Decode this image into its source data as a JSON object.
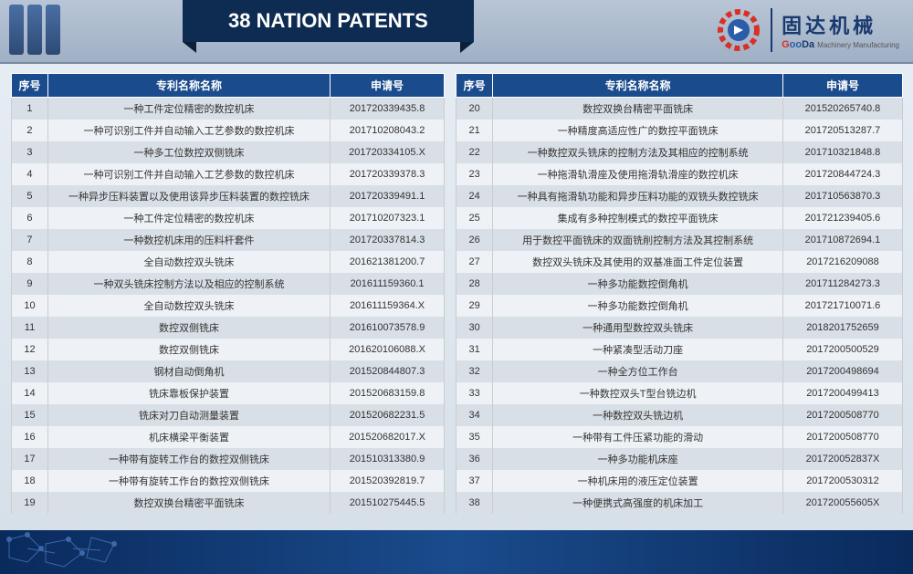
{
  "title": "38 NATION PATENTS",
  "logo": {
    "cn": "固达机械",
    "en_g": "G",
    "en_oo": "oo",
    "en_da": "Da",
    "en_sub": "Machinery Manufacturing"
  },
  "headers": {
    "num": "序号",
    "name": "专利名称名称",
    "app": "申请号"
  },
  "colors": {
    "header_bg": "#1a4b8c",
    "banner_bg": "#0e2b52",
    "row_odd": "#d9dfe6",
    "row_even": "#eef2f6"
  },
  "left_rows": [
    {
      "n": "1",
      "name": "一种工件定位精密的数控机床",
      "app": "201720339435.8"
    },
    {
      "n": "2",
      "name": "一种可识别工件并自动输入工艺参数的数控机床",
      "app": "201710208043.2"
    },
    {
      "n": "3",
      "name": "一种多工位数控双侧铣床",
      "app": "201720334105.X"
    },
    {
      "n": "4",
      "name": "一种可识别工件并自动输入工艺参数的数控机床",
      "app": "201720339378.3"
    },
    {
      "n": "5",
      "name": "一种异步压料装置以及使用该异步压料装置的数控铣床",
      "app": "201720339491.1"
    },
    {
      "n": "6",
      "name": "一种工件定位精密的数控机床",
      "app": "201710207323.1"
    },
    {
      "n": "7",
      "name": "一种数控机床用的压料杆套件",
      "app": "201720337814.3"
    },
    {
      "n": "8",
      "name": "全自动数控双头铣床",
      "app": "201621381200.7"
    },
    {
      "n": "9",
      "name": "一种双头铣床控制方法以及相应的控制系统",
      "app": "201611159360.1"
    },
    {
      "n": "10",
      "name": "全自动数控双头铣床",
      "app": "201611159364.X"
    },
    {
      "n": "11",
      "name": "数控双侧铣床",
      "app": "201610073578.9"
    },
    {
      "n": "12",
      "name": "数控双侧铣床",
      "app": "201620106088.X"
    },
    {
      "n": "13",
      "name": "钢材自动倒角机",
      "app": "201520844807.3"
    },
    {
      "n": "14",
      "name": "铣床靠板保护装置",
      "app": "201520683159.8"
    },
    {
      "n": "15",
      "name": "铣床对刀自动测量装置",
      "app": "201520682231.5"
    },
    {
      "n": "16",
      "name": "机床横梁平衡装置",
      "app": "201520682017.X"
    },
    {
      "n": "17",
      "name": "一种带有旋转工作台的数控双侧铣床",
      "app": "201510313380.9"
    },
    {
      "n": "18",
      "name": "一种带有旋转工作台的数控双侧铣床",
      "app": "201520392819.7"
    },
    {
      "n": "19",
      "name": "数控双换台精密平面铣床",
      "app": "201510275445.5"
    }
  ],
  "right_rows": [
    {
      "n": "20",
      "name": "数控双换台精密平面铣床",
      "app": "201520265740.8"
    },
    {
      "n": "21",
      "name": "一种精度高适应性广的数控平面铣床",
      "app": "201720513287.7"
    },
    {
      "n": "22",
      "name": "一种数控双头铣床的控制方法及其相应的控制系统",
      "app": "201710321848.8"
    },
    {
      "n": "23",
      "name": "一种拖滑轨滑座及使用拖滑轨滑座的数控机床",
      "app": "201720844724.3"
    },
    {
      "n": "24",
      "name": "一种具有拖滑轨功能和异步压料功能的双铣头数控铣床",
      "app": "201710563870.3"
    },
    {
      "n": "25",
      "name": "集成有多种控制模式的数控平面铣床",
      "app": "201721239405.6"
    },
    {
      "n": "26",
      "name": "用于数控平面铣床的双面铣削控制方法及其控制系统",
      "app": "201710872694.1"
    },
    {
      "n": "27",
      "name": "数控双头铣床及其使用的双基准面工件定位装置",
      "app": "2017216209088"
    },
    {
      "n": "28",
      "name": "一种多功能数控倒角机",
      "app": "201711284273.3"
    },
    {
      "n": "29",
      "name": "一种多功能数控倒角机",
      "app": "201721710071.6"
    },
    {
      "n": "30",
      "name": "一种通用型数控双头铣床",
      "app": "2018201752659"
    },
    {
      "n": "31",
      "name": "一种紧凑型活动刀座",
      "app": "2017200500529"
    },
    {
      "n": "32",
      "name": "一种全方位工作台",
      "app": "2017200498694"
    },
    {
      "n": "33",
      "name": "一种数控双头T型台铣边机",
      "app": "2017200499413"
    },
    {
      "n": "34",
      "name": "一种数控双头铣边机",
      "app": "2017200508770"
    },
    {
      "n": "35",
      "name": "一种带有工件压紧功能的滑动",
      "app": "2017200508770"
    },
    {
      "n": "36",
      "name": "一种多功能机床座",
      "app": "201720052837X"
    },
    {
      "n": "37",
      "name": "一种机床用的液压定位装置",
      "app": "2017200530312"
    },
    {
      "n": "38",
      "name": "一种便携式高强度的机床加工",
      "app": "201720055605X"
    }
  ]
}
